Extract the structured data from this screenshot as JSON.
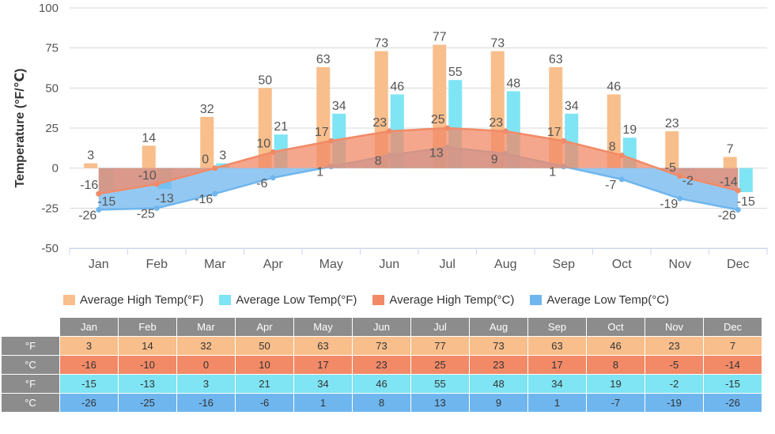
{
  "chart_data": {
    "type": "bar+area",
    "categories": [
      "Jan",
      "Feb",
      "Mar",
      "Apr",
      "May",
      "Jun",
      "Jul",
      "Aug",
      "Sep",
      "Oct",
      "Nov",
      "Dec"
    ],
    "ylabel": "Temperature (°F/℃)",
    "ylim": [
      -50,
      100
    ],
    "yticks": [
      -50,
      -25,
      0,
      25,
      50,
      75,
      100
    ],
    "grid": true,
    "legend_position": "bottom",
    "series": [
      {
        "name": "Average High Temp(°F)",
        "kind": "bar",
        "color": "#f8be8b",
        "values": [
          3,
          14,
          32,
          50,
          63,
          73,
          77,
          73,
          63,
          46,
          23,
          7
        ]
      },
      {
        "name": "Average Low Temp(°F)",
        "kind": "bar",
        "color": "#7fe4f3",
        "values": [
          -15,
          -13,
          3,
          21,
          34,
          46,
          55,
          48,
          34,
          19,
          -2,
          -15
        ]
      },
      {
        "name": "Average High Temp(°C)",
        "kind": "area",
        "color": "#f28a67",
        "values": [
          -16,
          -10,
          0,
          10,
          17,
          23,
          25,
          23,
          17,
          8,
          -5,
          -14
        ]
      },
      {
        "name": "Average Low Temp(°C)",
        "kind": "area",
        "color": "#6fb6ee",
        "values": [
          -26,
          -25,
          -16,
          -6,
          1,
          8,
          13,
          9,
          1,
          -7,
          -19,
          -26
        ]
      }
    ]
  },
  "table": {
    "header": [
      "Jan",
      "Feb",
      "Mar",
      "Apr",
      "May",
      "Jun",
      "Jul",
      "Aug",
      "Sep",
      "Oct",
      "Nov",
      "Dec"
    ],
    "rows": [
      {
        "unit": "°F",
        "values": [
          "3",
          "14",
          "32",
          "50",
          "63",
          "73",
          "77",
          "73",
          "63",
          "46",
          "23",
          "7"
        ]
      },
      {
        "unit": "°C",
        "values": [
          "-16",
          "-10",
          "0",
          "10",
          "17",
          "23",
          "25",
          "23",
          "17",
          "8",
          "-5",
          "-14"
        ]
      },
      {
        "unit": "°F",
        "values": [
          "-15",
          "-13",
          "3",
          "21",
          "34",
          "46",
          "55",
          "48",
          "34",
          "19",
          "-2",
          "-15"
        ]
      },
      {
        "unit": "°C",
        "values": [
          "-26",
          "-25",
          "-16",
          "-6",
          "1",
          "8",
          "13",
          "9",
          "1",
          "-7",
          "-19",
          "-26"
        ]
      }
    ]
  }
}
